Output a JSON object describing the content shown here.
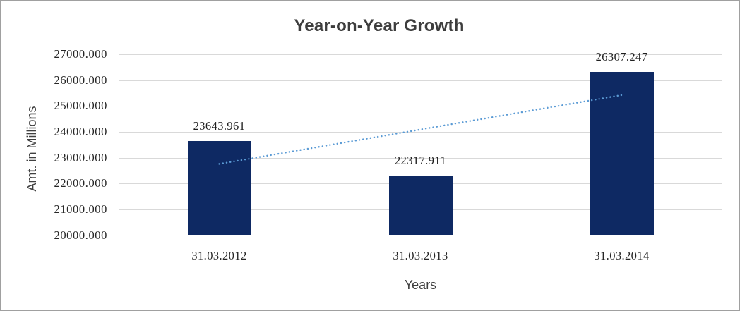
{
  "frame": {
    "background": "#ffffff",
    "border_color": "#a0a0a0"
  },
  "chart_data": {
    "type": "bar",
    "title": "Year-on-Year Growth",
    "xlabel": "Years",
    "ylabel": "Amt. in Millions",
    "categories": [
      "31.03.2012",
      "31.03.2013",
      "31.03.2014"
    ],
    "series": [
      {
        "name": "Amt. in Millions",
        "values": [
          23643.961,
          22317.911,
          26307.247
        ],
        "value_labels": [
          "23643.961",
          "22317.911",
          "26307.247"
        ],
        "color": "#0e2963"
      }
    ],
    "data_labels_position": "outside-end",
    "ylim": [
      20000,
      27000
    ],
    "y_tick_step": 1000,
    "y_tick_labels": [
      "20000.000",
      "21000.000",
      "22000.000",
      "23000.000",
      "24000.000",
      "25000.000",
      "26000.000",
      "27000.000"
    ],
    "grid": "horizontal",
    "legend": "none",
    "trendline": {
      "type": "linear",
      "style": "dotted",
      "color": "#5b9bd5",
      "applies_to": "Amt. in Millions"
    },
    "colors": {
      "title_text": "#3d3d3d",
      "axis_title_text": "#404040",
      "tick_label_text": "#262626",
      "data_label_text": "#1f1f1f",
      "gridline": "#d9d9d9"
    }
  }
}
